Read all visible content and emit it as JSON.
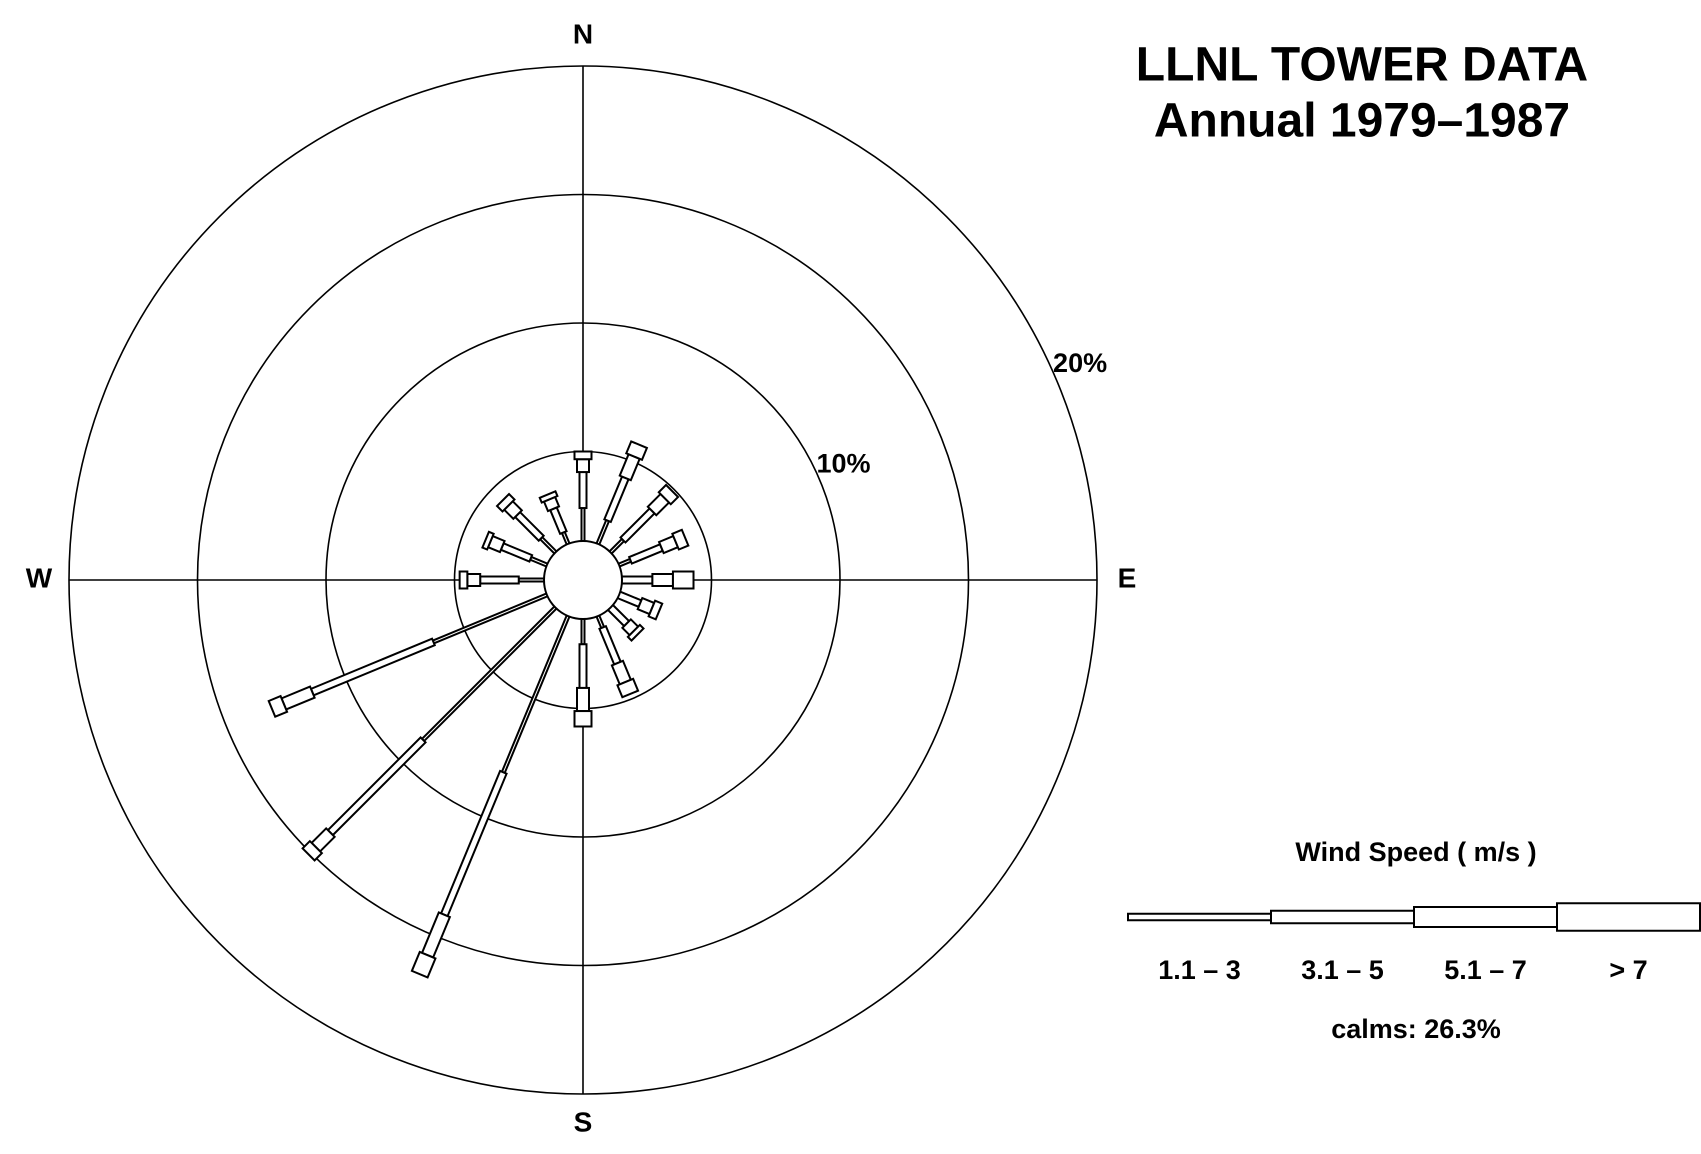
{
  "chart_data": {
    "type": "windrose",
    "title": "LLNL TOWER DATA",
    "subtitle": "Annual 1979–1987",
    "categories": [
      "N",
      null,
      null,
      null,
      "E",
      null,
      null,
      null,
      "S",
      null,
      null,
      null,
      "W",
      null,
      null,
      null
    ],
    "rlim": [
      0,
      20
    ],
    "rticks": [
      {
        "value": 5,
        "label": null
      },
      {
        "value": 10,
        "label": "10%"
      },
      {
        "value": 15,
        "label": null
      },
      {
        "value": 20,
        "label": "20%"
      }
    ],
    "legend_title": "Wind Speed ( m/s )",
    "series": [
      {
        "name": "1.1 – 3",
        "color": "#ffffff",
        "values": [
          2.8,
          2.5,
          2.2,
          2.0,
          1.5,
          1.5,
          1.5,
          2.0,
          2.5,
          8.1,
          8.8,
          6.3,
          2.5,
          2.2,
          2.3,
          2.0
        ]
      },
      {
        "name": "3.1 – 5",
        "color": "#ffffff",
        "values": [
          1.4,
          1.8,
          1.6,
          1.3,
          1.2,
          0.9,
          0.9,
          1.5,
          1.7,
          6.0,
          5.1,
          5.1,
          1.5,
          1.2,
          1.3,
          1.0
        ]
      },
      {
        "name": "5.1 – 7",
        "color": "#ffffff",
        "values": [
          0.5,
          0.9,
          0.7,
          0.6,
          0.8,
          0.5,
          0.4,
          0.8,
          0.9,
          1.7,
          0.8,
          1.2,
          0.5,
          0.5,
          0.5,
          0.4
        ]
      },
      {
        "name": "> 7",
        "color": "#ffffff",
        "values": [
          0.3,
          0.5,
          0.4,
          0.4,
          0.8,
          0.3,
          0.2,
          0.5,
          0.6,
          0.8,
          0.4,
          0.5,
          0.3,
          0.2,
          0.3,
          0.2
        ]
      }
    ],
    "annotations": [
      "calms:  26.3%"
    ]
  }
}
